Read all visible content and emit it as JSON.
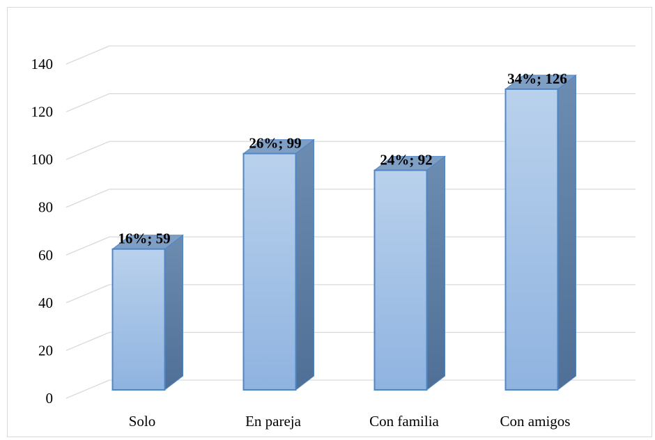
{
  "chart_data": {
    "type": "bar",
    "categories": [
      "Solo",
      "En pareja",
      "Con familia",
      "Con amigos"
    ],
    "values": [
      59,
      99,
      92,
      126
    ],
    "data_labels": [
      "16%; 59",
      "26%; 99",
      "24%; 92",
      "34%; 126"
    ],
    "title": "",
    "xlabel": "",
    "ylabel": "",
    "ylim": [
      0,
      140
    ],
    "yticks": [
      "0",
      "20",
      "40",
      "60",
      "80",
      "100",
      "120",
      "140"
    ],
    "grid": true,
    "legend": "none",
    "style": "3d-column",
    "colors": {
      "bar_top": "#b9d1ec",
      "bar_bottom": "#8fb3e0",
      "bar_edge": "#4f86c6",
      "bar_side": "#5b7fa8",
      "gridline": "#d9d9d9"
    }
  }
}
